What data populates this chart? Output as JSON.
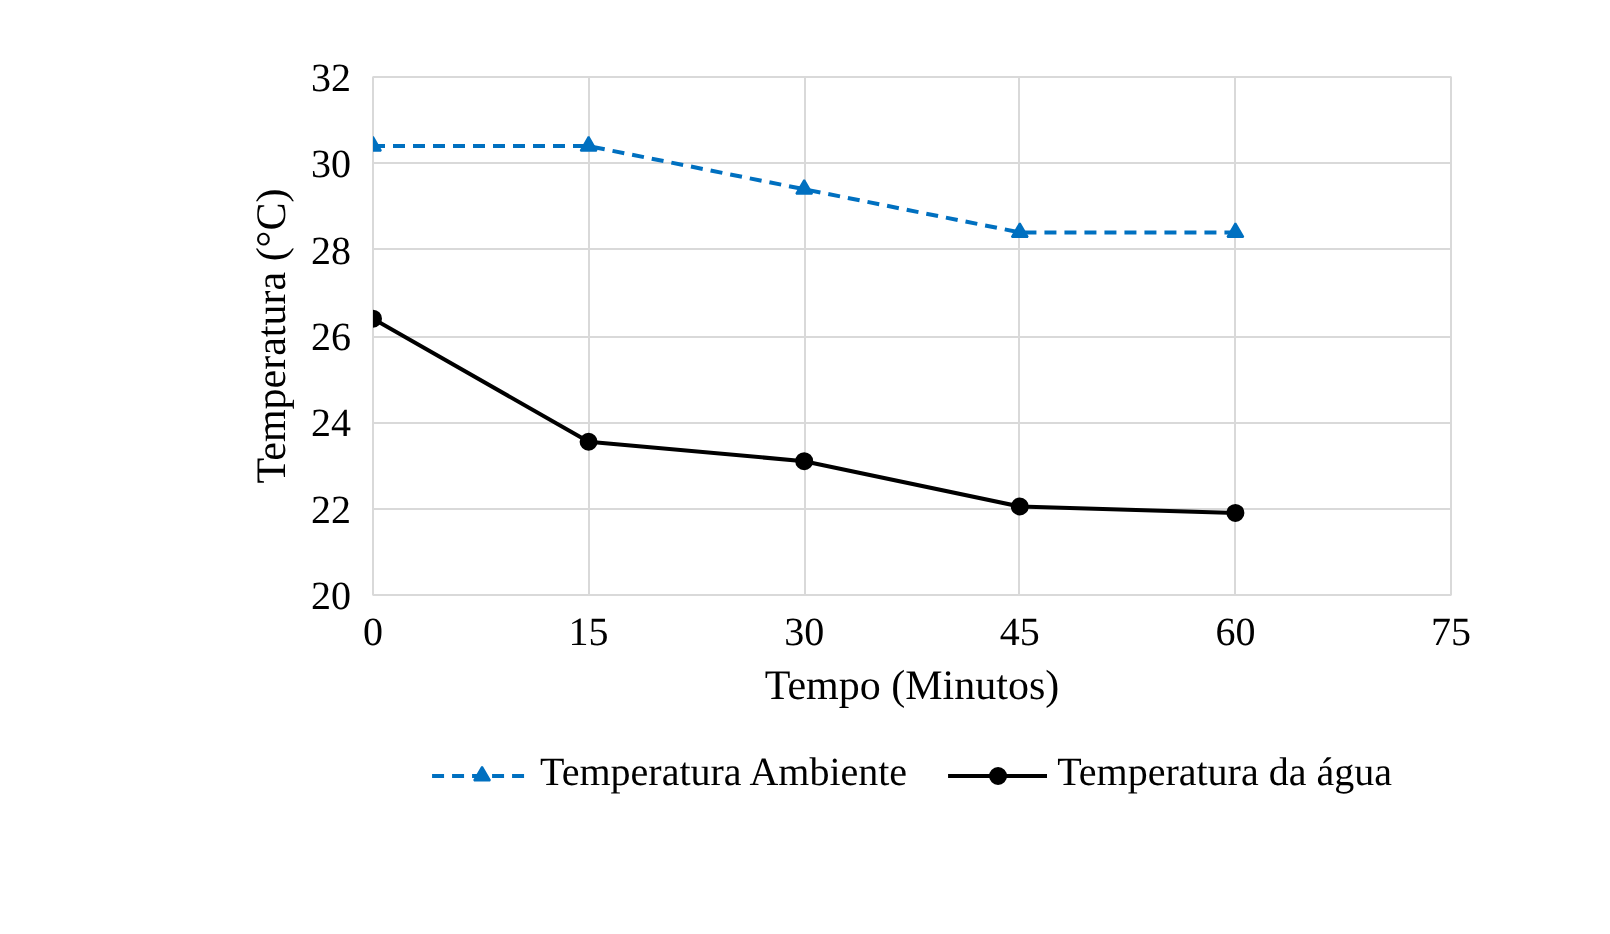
{
  "chart_data": {
    "type": "line",
    "xlabel": "Tempo (Minutos)",
    "ylabel": "Temperatura (°C)",
    "x": [
      0,
      15,
      30,
      45,
      60
    ],
    "series": [
      {
        "name": "Temperatura Ambiente",
        "color": "#0070c0",
        "values": [
          30.4,
          30.4,
          29.4,
          28.4,
          28.4
        ],
        "marker": "triangle",
        "line_style": "dashed"
      },
      {
        "name": "Temperatura da água",
        "color": "#000000",
        "values": [
          26.4,
          23.55,
          23.1,
          22.05,
          21.9
        ],
        "marker": "circle",
        "line_style": "solid"
      }
    ],
    "xlim": [
      0,
      75
    ],
    "xticks": [
      0,
      15,
      30,
      45,
      60,
      75
    ],
    "ylim": [
      20,
      32
    ],
    "yticks": [
      20,
      22,
      24,
      26,
      28,
      30,
      32
    ],
    "grid": true,
    "legend": "bottom"
  }
}
